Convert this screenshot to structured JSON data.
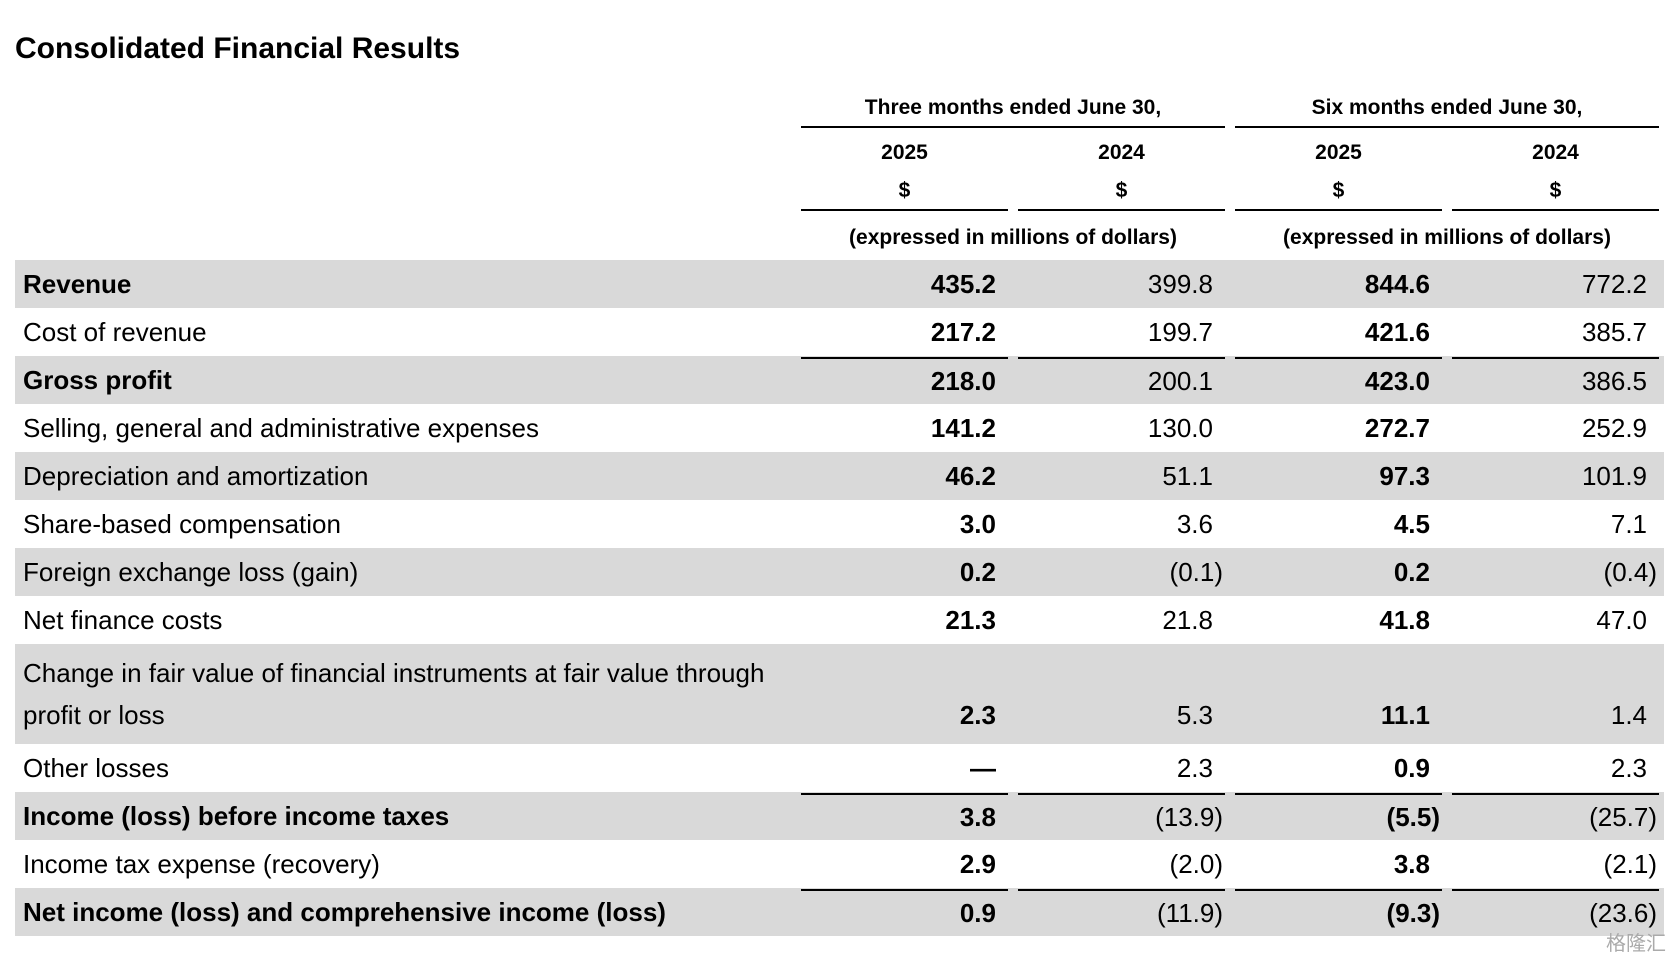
{
  "title": "Consolidated Financial Results",
  "header": {
    "groups": [
      "Three months ended June 30,",
      "Six months ended June 30,"
    ],
    "years": [
      "2025",
      "2024",
      "2025",
      "2024"
    ],
    "currency": [
      "$",
      "$",
      "$",
      "$"
    ],
    "units": [
      "(expressed in millions of dollars)",
      "(expressed in millions of dollars)"
    ]
  },
  "table": {
    "rows": [
      {
        "label": "Revenue",
        "values": [
          "435.2",
          "399.8",
          "844.6",
          "772.2"
        ],
        "bold": true
      },
      {
        "label": "Cost of revenue",
        "values": [
          "217.2",
          "199.7",
          "421.6",
          "385.7"
        ]
      },
      {
        "label": "Gross profit",
        "values": [
          "218.0",
          "200.1",
          "423.0",
          "386.5"
        ],
        "bold": true,
        "top_rule": true
      },
      {
        "label": "Selling, general and administrative expenses",
        "values": [
          "141.2",
          "130.0",
          "272.7",
          "252.9"
        ]
      },
      {
        "label": "Depreciation and amortization",
        "values": [
          "46.2",
          "51.1",
          "97.3",
          "101.9"
        ]
      },
      {
        "label": "Share-based compensation",
        "values": [
          "3.0",
          "3.6",
          "4.5",
          "7.1"
        ]
      },
      {
        "label": "Foreign exchange loss (gain)",
        "values": [
          "0.2",
          "(0.1)",
          "0.2",
          "(0.4)"
        ]
      },
      {
        "label": "Net finance costs",
        "values": [
          "21.3",
          "21.8",
          "41.8",
          "47.0"
        ]
      },
      {
        "label": "Change in fair value of financial instruments at fair value through profit or loss",
        "values": [
          "2.3",
          "5.3",
          "11.1",
          "1.4"
        ]
      },
      {
        "label": "Other losses",
        "values": [
          "—",
          "2.3",
          "0.9",
          "2.3"
        ]
      },
      {
        "label": "Income (loss) before income taxes",
        "values": [
          "3.8",
          "(13.9)",
          "(5.5)",
          "(25.7)"
        ],
        "bold": true,
        "top_rule": true
      },
      {
        "label": "Income tax expense (recovery)",
        "values": [
          "2.9",
          "(2.0)",
          "3.8",
          "(2.1)"
        ]
      },
      {
        "label": "Net income (loss) and comprehensive income (loss)",
        "values": [
          "0.9",
          "(11.9)",
          "(9.3)",
          "(23.6)"
        ],
        "bold": true,
        "top_rule": true
      }
    ]
  },
  "watermark": "格隆汇"
}
